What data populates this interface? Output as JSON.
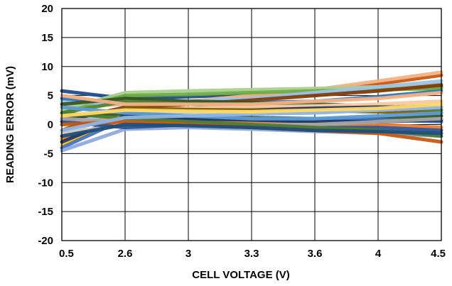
{
  "chart_data": {
    "type": "line",
    "title": "",
    "xlabel": "CELL VOLTAGE (V)",
    "ylabel": "READING ERROR (mV)",
    "categories": [
      "0.5",
      "2.6",
      "3",
      "3.3",
      "3.6",
      "4",
      "4.5"
    ],
    "ylim": [
      -20,
      20
    ],
    "yticks": [
      20,
      15,
      10,
      5,
      0,
      -5,
      -10,
      -15,
      -20
    ],
    "grid": true,
    "legend": "none",
    "series": [
      {
        "color": "#1f4e8c",
        "values": [
          5.8,
          4.5,
          4.8,
          5.2,
          5.6,
          6.0,
          6.5
        ]
      },
      {
        "color": "#c55a11",
        "values": [
          1.0,
          2.5,
          3.5,
          4.5,
          5.8,
          7.0,
          8.5
        ]
      },
      {
        "color": "#f4b183",
        "values": [
          3.0,
          3.5,
          4.0,
          5.0,
          6.0,
          7.5,
          9.0
        ]
      },
      {
        "color": "#a9d18e",
        "values": [
          2.5,
          5.5,
          5.8,
          6.0,
          6.2,
          6.5,
          7.0
        ]
      },
      {
        "color": "#70ad47",
        "values": [
          2.0,
          5.0,
          5.2,
          5.5,
          5.8,
          6.0,
          6.2
        ]
      },
      {
        "color": "#9dc3e6",
        "values": [
          4.0,
          3.5,
          4.0,
          4.5,
          5.5,
          6.5,
          7.5
        ]
      },
      {
        "color": "#843c0c",
        "values": [
          0.5,
          3.0,
          3.5,
          4.2,
          5.0,
          5.8,
          6.8
        ]
      },
      {
        "color": "#2e75b6",
        "values": [
          4.5,
          3.8,
          3.5,
          3.8,
          4.0,
          4.8,
          5.8
        ]
      },
      {
        "color": "#375623",
        "values": [
          3.5,
          4.5,
          4.0,
          3.8,
          3.5,
          3.2,
          3.0
        ]
      },
      {
        "color": "#ffc000",
        "values": [
          -3.5,
          1.5,
          2.0,
          2.5,
          3.0,
          3.5,
          4.0
        ]
      },
      {
        "color": "#548235",
        "values": [
          2.0,
          4.0,
          3.5,
          3.0,
          3.0,
          2.8,
          2.5
        ]
      },
      {
        "color": "#f8cbad",
        "values": [
          -2.0,
          2.5,
          2.8,
          3.0,
          3.2,
          3.5,
          4.0
        ]
      },
      {
        "color": "#203864",
        "values": [
          1.0,
          2.0,
          2.2,
          2.5,
          2.8,
          3.0,
          3.0
        ]
      },
      {
        "color": "#7f6000",
        "values": [
          -1.0,
          2.8,
          2.6,
          2.5,
          2.4,
          2.2,
          2.0
        ]
      },
      {
        "color": "#bdd7ee",
        "values": [
          0.0,
          2.2,
          2.0,
          2.0,
          2.2,
          2.5,
          3.0
        ]
      },
      {
        "color": "#385723",
        "values": [
          1.5,
          1.8,
          1.5,
          1.2,
          1.0,
          1.0,
          1.5
        ]
      },
      {
        "color": "#4472c4",
        "values": [
          -4.0,
          1.0,
          1.2,
          1.0,
          1.0,
          0.8,
          0.5
        ]
      },
      {
        "color": "#ed7d31",
        "values": [
          -2.5,
          0.5,
          0.8,
          0.5,
          0.2,
          0.0,
          -0.5
        ]
      },
      {
        "color": "#1f3864",
        "values": [
          -3.0,
          1.5,
          1.0,
          0.8,
          0.5,
          0.5,
          0.8
        ]
      },
      {
        "color": "#8faadc",
        "values": [
          -4.5,
          -0.8,
          -0.5,
          -0.8,
          -1.2,
          -1.5,
          -2.0
        ]
      },
      {
        "color": "#c9c9c9",
        "values": [
          -1.5,
          0.0,
          -0.2,
          -0.5,
          -0.5,
          -1.0,
          -1.5
        ]
      },
      {
        "color": "#2f5597",
        "values": [
          0.5,
          -0.5,
          0.0,
          0.0,
          -0.5,
          -0.5,
          -1.0
        ]
      },
      {
        "color": "#a5a5a5",
        "values": [
          1.0,
          0.5,
          0.2,
          0.0,
          0.0,
          0.5,
          1.0
        ]
      },
      {
        "color": "#4e7b2f",
        "values": [
          2.0,
          1.0,
          0.5,
          0.0,
          -0.5,
          -1.0,
          -2.0
        ]
      },
      {
        "color": "#c55a11",
        "values": [
          0.0,
          0.5,
          0.0,
          -0.5,
          -1.0,
          -1.5,
          -3.0
        ]
      },
      {
        "color": "#5b9bd5",
        "values": [
          3.0,
          2.0,
          1.5,
          1.0,
          1.0,
          1.5,
          2.0
        ]
      },
      {
        "color": "#8fb4e3",
        "values": [
          -1.0,
          1.2,
          1.5,
          1.8,
          2.0,
          2.5,
          3.0
        ]
      },
      {
        "color": "#f4b183",
        "values": [
          5.0,
          3.5,
          3.5,
          3.5,
          4.0,
          4.5,
          5.5
        ]
      },
      {
        "color": "#1f4e79",
        "values": [
          -2.0,
          0.0,
          -0.2,
          -0.5,
          -1.0,
          -1.2,
          -1.5
        ]
      },
      {
        "color": "#ffd966",
        "values": [
          1.5,
          2.5,
          2.3,
          2.2,
          2.5,
          2.8,
          3.5
        ]
      }
    ]
  }
}
